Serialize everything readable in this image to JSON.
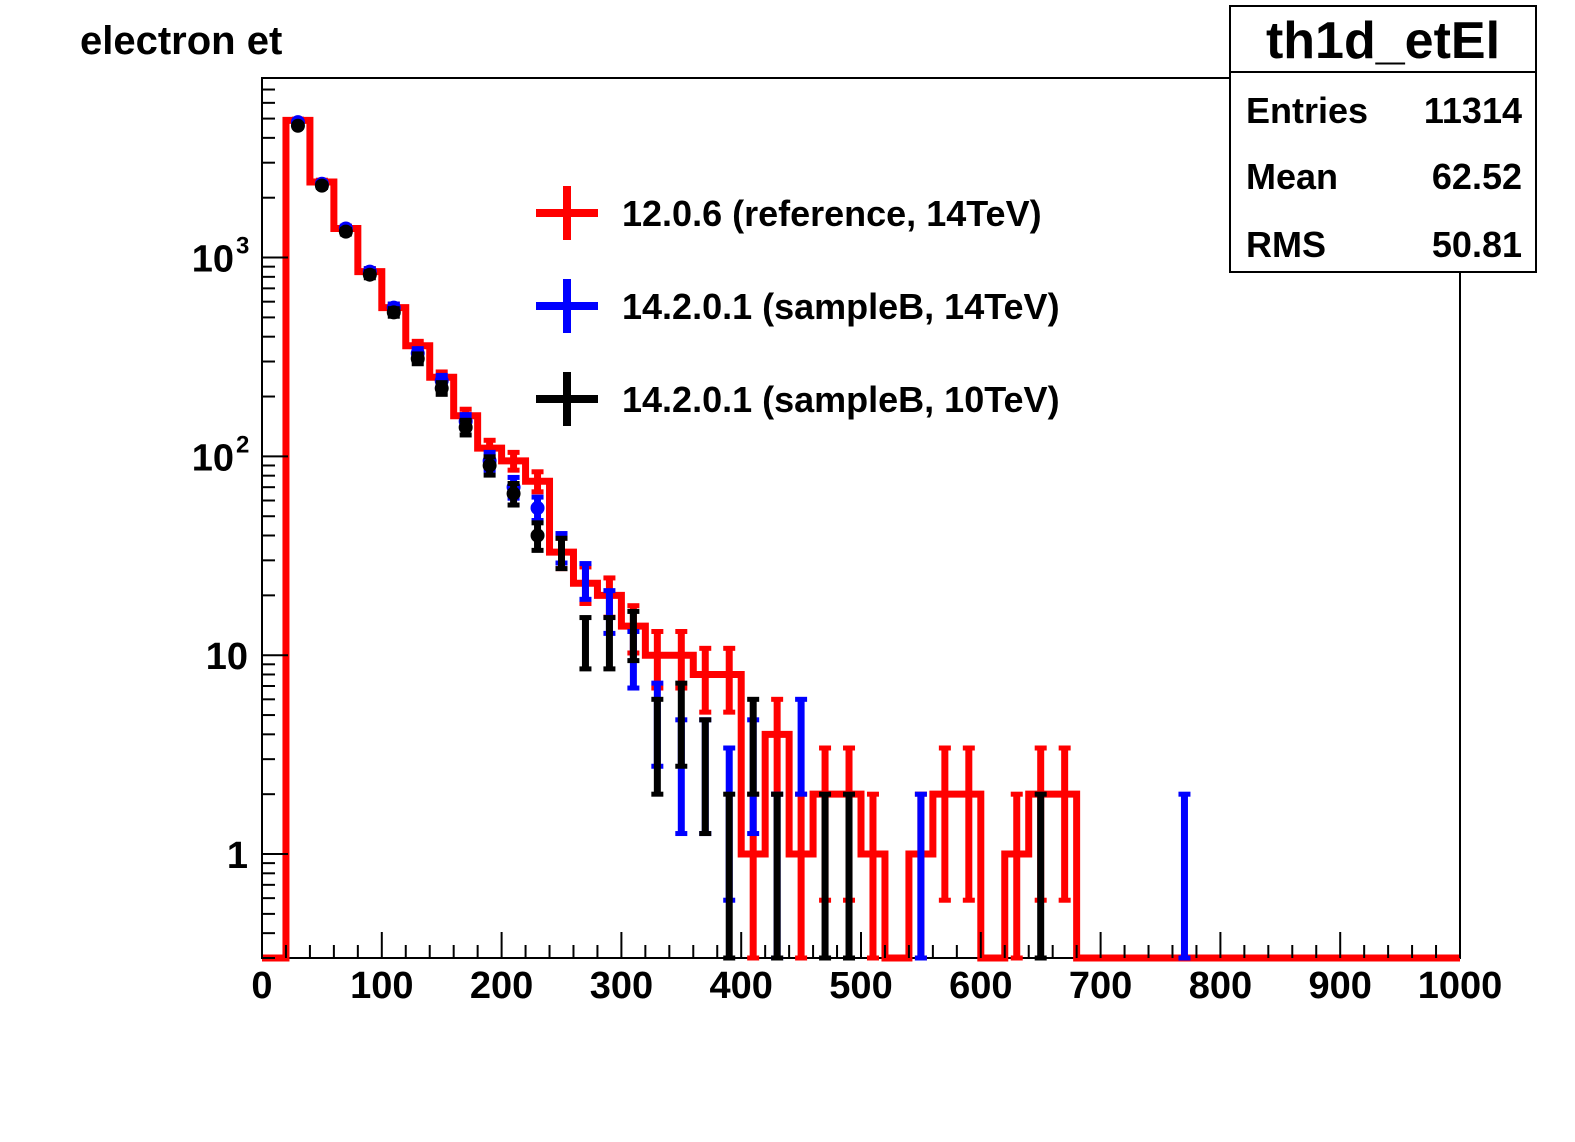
{
  "chart_data": {
    "type": "histogram",
    "title": "electron et",
    "xlabel": "",
    "ylabel": "",
    "x_range": [
      0,
      1000
    ],
    "y_range": [
      0.3,
      8000
    ],
    "y_scale": "log",
    "bin_width": 20,
    "x_ticks": [
      "0",
      "100",
      "200",
      "300",
      "400",
      "500",
      "600",
      "700",
      "800",
      "900",
      "1000"
    ],
    "y_ticks": [
      {
        "value": 1,
        "base": "1",
        "exp": ""
      },
      {
        "value": 10,
        "base": "10",
        "exp": ""
      },
      {
        "value": 100,
        "base": "10",
        "exp": "2"
      },
      {
        "value": 1000,
        "base": "10",
        "exp": "3"
      }
    ],
    "stats_box": {
      "name": "th1d_etEl",
      "rows": [
        {
          "label": "Entries",
          "value": "11314"
        },
        {
          "label": "Mean",
          "value": "62.52"
        },
        {
          "label": "RMS",
          "value": "50.81"
        }
      ]
    },
    "legend": {
      "position": "top-center",
      "entries": [
        {
          "label": "12.0.6 (reference, 14TeV)",
          "color": "#ff0000"
        },
        {
          "label": "14.2.0.1 (sampleB, 14TeV)",
          "color": "#0000ff"
        },
        {
          "label": "14.2.0.1 (sampleB, 10TeV)",
          "color": "#000000"
        }
      ]
    },
    "series": [
      {
        "name": "12.0.6 (reference, 14TeV)",
        "color": "#ff0000",
        "style": "histogram-step-with-errors",
        "bins": [
          {
            "x": 30,
            "y": 4900
          },
          {
            "x": 50,
            "y": 2400
          },
          {
            "x": 70,
            "y": 1400
          },
          {
            "x": 90,
            "y": 850
          },
          {
            "x": 110,
            "y": 560
          },
          {
            "x": 130,
            "y": 360
          },
          {
            "x": 150,
            "y": 250
          },
          {
            "x": 170,
            "y": 160
          },
          {
            "x": 190,
            "y": 110
          },
          {
            "x": 210,
            "y": 95
          },
          {
            "x": 230,
            "y": 75
          },
          {
            "x": 250,
            "y": 33
          },
          {
            "x": 270,
            "y": 23
          },
          {
            "x": 290,
            "y": 20
          },
          {
            "x": 310,
            "y": 14
          },
          {
            "x": 330,
            "y": 10
          },
          {
            "x": 350,
            "y": 10
          },
          {
            "x": 370,
            "y": 8
          },
          {
            "x": 390,
            "y": 8
          },
          {
            "x": 410,
            "y": 1
          },
          {
            "x": 430,
            "y": 4
          },
          {
            "x": 450,
            "y": 1
          },
          {
            "x": 470,
            "y": 2
          },
          {
            "x": 490,
            "y": 2
          },
          {
            "x": 510,
            "y": 1
          },
          {
            "x": 550,
            "y": 1
          },
          {
            "x": 570,
            "y": 2
          },
          {
            "x": 590,
            "y": 2
          },
          {
            "x": 630,
            "y": 1
          },
          {
            "x": 650,
            "y": 2
          },
          {
            "x": 670,
            "y": 2
          }
        ]
      },
      {
        "name": "14.2.0.1 (sampleB, 14TeV)",
        "color": "#0000ff",
        "style": "error-bars",
        "points": [
          {
            "x": 30,
            "y": 4800
          },
          {
            "x": 50,
            "y": 2350
          },
          {
            "x": 70,
            "y": 1400
          },
          {
            "x": 90,
            "y": 850
          },
          {
            "x": 110,
            "y": 560
          },
          {
            "x": 130,
            "y": 330
          },
          {
            "x": 150,
            "y": 240
          },
          {
            "x": 170,
            "y": 150
          },
          {
            "x": 190,
            "y": 95
          },
          {
            "x": 210,
            "y": 70
          },
          {
            "x": 230,
            "y": 55
          },
          {
            "x": 250,
            "y": 35
          },
          {
            "x": 270,
            "y": 24
          },
          {
            "x": 290,
            "y": 17
          },
          {
            "x": 310,
            "y": 10
          },
          {
            "x": 330,
            "y": 5
          },
          {
            "x": 350,
            "y": 3
          },
          {
            "x": 370,
            "y": 3
          },
          {
            "x": 390,
            "y": 2
          },
          {
            "x": 410,
            "y": 3
          },
          {
            "x": 430,
            "y": 1
          },
          {
            "x": 450,
            "y": 4
          },
          {
            "x": 550,
            "y": 1
          },
          {
            "x": 770,
            "y": 1
          }
        ]
      },
      {
        "name": "14.2.0.1 (sampleB, 10TeV)",
        "color": "#000000",
        "style": "error-bars",
        "points": [
          {
            "x": 30,
            "y": 4600
          },
          {
            "x": 50,
            "y": 2300
          },
          {
            "x": 70,
            "y": 1350
          },
          {
            "x": 90,
            "y": 820
          },
          {
            "x": 110,
            "y": 530
          },
          {
            "x": 130,
            "y": 310
          },
          {
            "x": 150,
            "y": 220
          },
          {
            "x": 170,
            "y": 140
          },
          {
            "x": 190,
            "y": 90
          },
          {
            "x": 210,
            "y": 65
          },
          {
            "x": 230,
            "y": 40
          },
          {
            "x": 250,
            "y": 33
          },
          {
            "x": 270,
            "y": 12
          },
          {
            "x": 290,
            "y": 12
          },
          {
            "x": 310,
            "y": 13
          },
          {
            "x": 330,
            "y": 4
          },
          {
            "x": 350,
            "y": 5
          },
          {
            "x": 370,
            "y": 3
          },
          {
            "x": 390,
            "y": 1
          },
          {
            "x": 410,
            "y": 4
          },
          {
            "x": 430,
            "y": 1
          },
          {
            "x": 470,
            "y": 1
          },
          {
            "x": 490,
            "y": 1
          },
          {
            "x": 650,
            "y": 1
          }
        ]
      }
    ]
  }
}
